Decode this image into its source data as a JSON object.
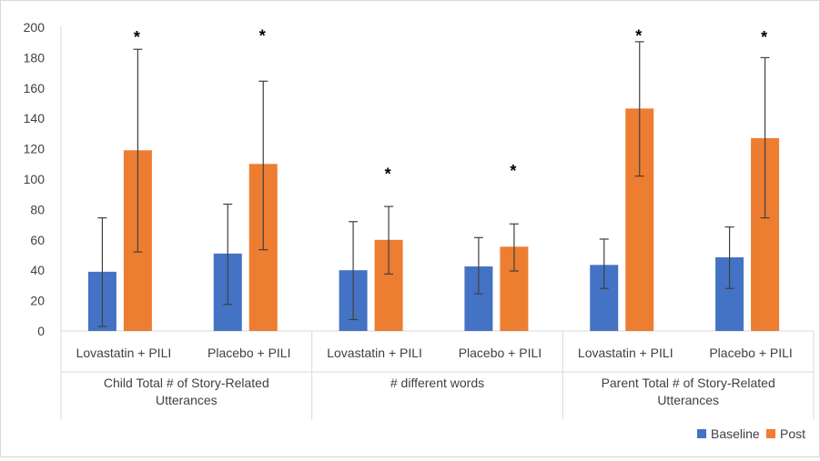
{
  "chart_data": {
    "type": "bar",
    "title": "",
    "ylim": [
      0,
      200
    ],
    "yticks": [
      "0",
      "20",
      "40",
      "60",
      "80",
      "100",
      "120",
      "140",
      "160",
      "180",
      "200"
    ],
    "grid": false,
    "legend_position": "bottom-right",
    "groups": [
      {
        "label_lines": [
          "Child Total # of Story-Related",
          "Utterances"
        ],
        "categories": [
          "Lovastatin + PILI",
          "Placebo + PILI"
        ]
      },
      {
        "label_lines": [
          "# different words"
        ],
        "categories": [
          "Lovastatin + PILI",
          "Placebo + PILI"
        ]
      },
      {
        "label_lines": [
          "Parent Total # of Story-Related",
          "Utterances"
        ],
        "categories": [
          "Lovastatin + PILI",
          "Placebo + PILI"
        ]
      }
    ],
    "series": [
      {
        "name": "Baseline",
        "color": "#4472c4",
        "values": [
          39,
          51,
          40,
          42.5,
          43.5,
          48.5
        ],
        "err_low": [
          3,
          17.5,
          7.5,
          24.5,
          28,
          28
        ],
        "err_high": [
          74.5,
          83.5,
          72,
          61.5,
          60.5,
          68.5
        ]
      },
      {
        "name": "Post",
        "color": "#ed7d31",
        "values": [
          119,
          110,
          60,
          55.5,
          146.5,
          127
        ],
        "err_low": [
          52,
          53.5,
          37.5,
          39.5,
          102,
          74.5
        ],
        "err_high": [
          185.5,
          164.5,
          82,
          70.5,
          190.5,
          180
        ]
      }
    ],
    "significance_marker": "*",
    "significance_y": [
      197,
      198,
      107,
      109,
      198,
      197
    ]
  }
}
